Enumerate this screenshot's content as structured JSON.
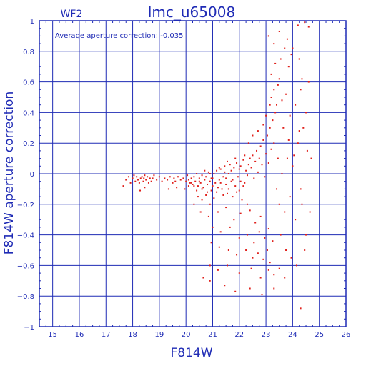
{
  "chart_data": {
    "type": "scatter",
    "title": "lmc_u65008",
    "subtitle": "WF2",
    "annotation": "Average aperture correction: -0.035",
    "xlabel": "F814W",
    "ylabel": "F814W aperture correction",
    "xlim": [
      14.5,
      26
    ],
    "ylim": [
      -1,
      1
    ],
    "xticks": [
      15,
      16,
      17,
      18,
      19,
      20,
      21,
      22,
      23,
      24,
      25,
      26
    ],
    "yticks": [
      -1,
      -0.8,
      -0.6,
      -0.4,
      -0.2,
      0,
      0.2,
      0.4,
      0.6,
      0.8,
      1
    ],
    "ytick_labels": [
      "−1",
      "−0.8",
      "−0.6",
      "−0.4",
      "−0.2",
      "0",
      "0.2",
      "0.4",
      "0.6",
      "0.8",
      "1"
    ],
    "grid": true,
    "average_line": -0.035,
    "colors": {
      "axes": "#1f2bb5",
      "points": "#e0201b",
      "average_line": "#e0201b"
    },
    "points": [
      [
        17.65,
        -0.08
      ],
      [
        17.75,
        -0.04
      ],
      [
        17.85,
        -0.02
      ],
      [
        17.92,
        -0.06
      ],
      [
        18.0,
        -0.03
      ],
      [
        18.05,
        -0.01
      ],
      [
        18.1,
        -0.05
      ],
      [
        18.15,
        -0.02
      ],
      [
        18.2,
        -0.04
      ],
      [
        18.25,
        -0.06
      ],
      [
        18.3,
        -0.03
      ],
      [
        18.35,
        -0.02
      ],
      [
        18.4,
        -0.05
      ],
      [
        18.42,
        -0.03
      ],
      [
        18.45,
        -0.01
      ],
      [
        18.5,
        -0.04
      ],
      [
        18.55,
        -0.02
      ],
      [
        18.6,
        -0.06
      ],
      [
        18.65,
        -0.03
      ],
      [
        18.7,
        -0.05
      ],
      [
        18.28,
        -0.11
      ],
      [
        18.45,
        -0.09
      ],
      [
        18.75,
        -0.03
      ],
      [
        18.8,
        -0.01
      ],
      [
        18.9,
        -0.04
      ],
      [
        19.0,
        -0.02
      ],
      [
        19.1,
        -0.05
      ],
      [
        19.2,
        -0.03
      ],
      [
        19.3,
        -0.04
      ],
      [
        19.4,
        -0.02
      ],
      [
        19.5,
        -0.06
      ],
      [
        19.55,
        -0.03
      ],
      [
        19.6,
        -0.05
      ],
      [
        19.7,
        -0.02
      ],
      [
        19.8,
        -0.04
      ],
      [
        19.9,
        -0.03
      ],
      [
        20.0,
        -0.05
      ],
      [
        20.05,
        -0.01
      ],
      [
        20.1,
        -0.04
      ],
      [
        20.15,
        -0.06
      ],
      [
        19.35,
        -0.1
      ],
      [
        19.65,
        -0.09
      ],
      [
        19.95,
        -0.1
      ],
      [
        20.2,
        -0.03
      ],
      [
        20.25,
        -0.07
      ],
      [
        20.3,
        -0.02
      ],
      [
        20.35,
        -0.05
      ],
      [
        20.4,
        0.0
      ],
      [
        20.45,
        -0.08
      ],
      [
        20.5,
        -0.03
      ],
      [
        20.55,
        -0.06
      ],
      [
        20.6,
        -0.01
      ],
      [
        20.65,
        -0.09
      ],
      [
        20.7,
        -0.04
      ],
      [
        20.75,
        -0.02
      ],
      [
        20.8,
        -0.07
      ],
      [
        20.85,
        0.01
      ],
      [
        20.9,
        -0.05
      ],
      [
        20.95,
        -0.11
      ],
      [
        21.0,
        -0.03
      ],
      [
        20.45,
        -0.15
      ],
      [
        20.6,
        -0.17
      ],
      [
        20.75,
        -0.14
      ],
      [
        20.9,
        -0.2
      ],
      [
        21.05,
        -0.16
      ],
      [
        21.1,
        -0.06
      ],
      [
        21.15,
        0.02
      ],
      [
        21.2,
        -0.09
      ],
      [
        21.25,
        -0.04
      ],
      [
        21.3,
        0.03
      ],
      [
        21.35,
        -0.1
      ],
      [
        21.4,
        -0.02
      ],
      [
        21.45,
        0.05
      ],
      [
        21.5,
        -0.07
      ],
      [
        21.55,
        -0.13
      ],
      [
        21.6,
        0.0
      ],
      [
        21.65,
        0.06
      ],
      [
        21.7,
        -0.05
      ],
      [
        21.75,
        -0.15
      ],
      [
        21.8,
        0.04
      ],
      [
        21.85,
        -0.08
      ],
      [
        21.9,
        0.07
      ],
      [
        21.95,
        -0.02
      ],
      [
        22.0,
        -0.11
      ],
      [
        22.05,
        0.05
      ],
      [
        22.1,
        -0.17
      ],
      [
        22.15,
        0.09
      ],
      [
        22.2,
        -0.06
      ],
      [
        22.25,
        0.02
      ],
      [
        22.3,
        -0.2
      ],
      [
        20.3,
        -0.2
      ],
      [
        20.55,
        -0.25
      ],
      [
        20.85,
        -0.28
      ],
      [
        21.2,
        -0.25
      ],
      [
        21.5,
        -0.22
      ],
      [
        21.8,
        -0.3
      ],
      [
        22.05,
        -0.26
      ],
      [
        22.4,
        -0.24
      ],
      [
        22.6,
        -0.32
      ],
      [
        22.8,
        -0.28
      ],
      [
        21.0,
        -0.35
      ],
      [
        21.3,
        -0.38
      ],
      [
        21.65,
        -0.35
      ],
      [
        22.0,
        -0.42
      ],
      [
        22.3,
        -0.4
      ],
      [
        22.55,
        -0.45
      ],
      [
        22.75,
        -0.38
      ],
      [
        22.95,
        -0.42
      ],
      [
        23.1,
        -0.36
      ],
      [
        23.25,
        -0.44
      ],
      [
        20.95,
        -0.45
      ],
      [
        21.25,
        -0.48
      ],
      [
        21.6,
        -0.5
      ],
      [
        21.9,
        -0.53
      ],
      [
        22.25,
        -0.5
      ],
      [
        22.5,
        -0.55
      ],
      [
        22.7,
        -0.52
      ],
      [
        22.9,
        -0.56
      ],
      [
        23.05,
        -0.5
      ],
      [
        23.15,
        -0.58
      ],
      [
        20.9,
        -0.6
      ],
      [
        21.2,
        -0.63
      ],
      [
        21.55,
        -0.6
      ],
      [
        22.0,
        -0.65
      ],
      [
        22.45,
        -0.62
      ],
      [
        22.8,
        -0.68
      ],
      [
        23.1,
        -0.63
      ],
      [
        23.3,
        -0.66
      ],
      [
        23.5,
        -0.62
      ],
      [
        23.7,
        -0.68
      ],
      [
        20.65,
        -0.68
      ],
      [
        20.9,
        -0.7
      ],
      [
        21.45,
        -0.73
      ],
      [
        21.85,
        -0.77
      ],
      [
        22.4,
        -0.75
      ],
      [
        22.85,
        -0.79
      ],
      [
        23.3,
        -0.75
      ],
      [
        24.3,
        -0.88
      ],
      [
        22.4,
        0.1
      ],
      [
        22.45,
        0.04
      ],
      [
        22.5,
        0.12
      ],
      [
        22.55,
        -0.03
      ],
      [
        22.6,
        0.08
      ],
      [
        22.65,
        0.15
      ],
      [
        22.7,
        0.01
      ],
      [
        22.75,
        0.1
      ],
      [
        22.8,
        0.18
      ],
      [
        22.85,
        0.06
      ],
      [
        22.9,
        0.22
      ],
      [
        22.95,
        -0.02
      ],
      [
        23.0,
        0.13
      ],
      [
        23.05,
        0.25
      ],
      [
        23.1,
        0.07
      ],
      [
        23.15,
        0.3
      ],
      [
        23.2,
        0.16
      ],
      [
        23.25,
        0.35
      ],
      [
        23.3,
        0.2
      ],
      [
        23.35,
        0.4
      ],
      [
        22.35,
        0.2
      ],
      [
        22.5,
        0.25
      ],
      [
        22.7,
        0.28
      ],
      [
        22.9,
        0.32
      ],
      [
        23.0,
        0.38
      ],
      [
        23.15,
        0.45
      ],
      [
        23.2,
        0.5
      ],
      [
        23.3,
        0.55
      ],
      [
        23.4,
        0.45
      ],
      [
        23.5,
        0.62
      ],
      [
        23.2,
        0.65
      ],
      [
        23.35,
        0.72
      ],
      [
        23.45,
        0.58
      ],
      [
        23.55,
        0.75
      ],
      [
        23.6,
        0.48
      ],
      [
        23.7,
        0.82
      ],
      [
        23.75,
        0.52
      ],
      [
        23.85,
        0.7
      ],
      [
        23.9,
        0.38
      ],
      [
        23.95,
        0.78
      ],
      [
        23.1,
        0.9
      ],
      [
        23.3,
        0.85
      ],
      [
        23.5,
        0.93
      ],
      [
        23.8,
        0.88
      ],
      [
        24.2,
        0.97
      ],
      [
        24.45,
        0.99
      ],
      [
        24.6,
        0.96
      ],
      [
        24.0,
        0.82
      ],
      [
        24.25,
        0.75
      ],
      [
        24.35,
        0.62
      ],
      [
        23.4,
        -0.1
      ],
      [
        23.5,
        -0.2
      ],
      [
        23.6,
        0.0
      ],
      [
        23.7,
        -0.25
      ],
      [
        23.8,
        0.1
      ],
      [
        23.9,
        -0.15
      ],
      [
        24.0,
        0.05
      ],
      [
        24.1,
        -0.3
      ],
      [
        24.2,
        0.2
      ],
      [
        24.3,
        -0.1
      ],
      [
        24.4,
        0.3
      ],
      [
        24.5,
        -0.4
      ],
      [
        24.55,
        0.15
      ],
      [
        24.65,
        -0.25
      ],
      [
        24.7,
        0.1
      ],
      [
        23.55,
        -0.4
      ],
      [
        23.75,
        -0.5
      ],
      [
        23.95,
        -0.55
      ],
      [
        24.15,
        -0.6
      ],
      [
        24.45,
        -0.5
      ],
      [
        24.1,
        0.45
      ],
      [
        24.3,
        0.55
      ],
      [
        24.5,
        0.4
      ],
      [
        24.25,
        0.28
      ],
      [
        24.6,
        0.6
      ],
      [
        23.65,
        0.3
      ],
      [
        23.85,
        0.22
      ],
      [
        24.05,
        0.12
      ],
      [
        23.45,
        0.1
      ],
      [
        24.35,
        -0.2
      ],
      [
        21.0,
        -0.08
      ],
      [
        21.05,
        0.0
      ],
      [
        21.15,
        -0.12
      ],
      [
        21.25,
        0.04
      ],
      [
        21.3,
        -0.06
      ],
      [
        21.4,
        -0.14
      ],
      [
        21.45,
        0.01
      ],
      [
        21.5,
        -0.03
      ],
      [
        21.55,
        0.08
      ],
      [
        21.6,
        -0.1
      ],
      [
        21.7,
        0.02
      ],
      [
        21.75,
        -0.04
      ],
      [
        21.85,
        0.1
      ],
      [
        21.9,
        -0.12
      ],
      [
        22.0,
        0.03
      ],
      [
        22.05,
        -0.05
      ],
      [
        22.15,
        -0.08
      ],
      [
        22.2,
        0.12
      ],
      [
        22.3,
        -0.01
      ],
      [
        22.35,
        0.06
      ],
      [
        20.5,
        -0.05
      ],
      [
        20.6,
        -0.1
      ],
      [
        20.7,
        0.02
      ],
      [
        20.8,
        -0.12
      ],
      [
        20.9,
        0.0
      ],
      [
        20.95,
        -0.03
      ],
      [
        20.4,
        -0.11
      ],
      [
        20.3,
        -0.08
      ],
      [
        20.2,
        -0.06
      ],
      [
        20.1,
        -0.08
      ]
    ]
  }
}
